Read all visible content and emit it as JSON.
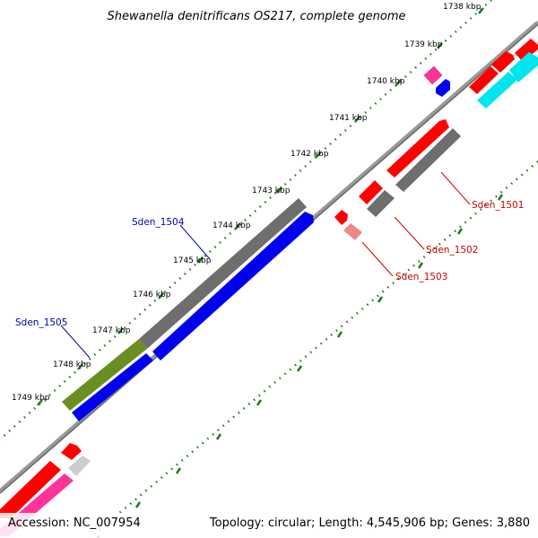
{
  "title": "Shewanella denitrificans OS217, complete genome",
  "footer": {
    "accession": "Accession: NC_007954",
    "summary": "Topology: circular; Length: 4,545,906 bp; Genes: 3,880"
  },
  "ruler_labels": [
    "1738 kbp",
    "1739 kbp",
    "1740 kbp",
    "1741 kbp",
    "1742 kbp",
    "1743 kbp",
    "1744 kbp",
    "1745 kbp",
    "1746 kbp",
    "1747 kbp",
    "1748 kbp",
    "1749 kbp"
  ],
  "gene_labels": {
    "sden_1501": "Sden_1501",
    "sden_1502": "Sden_1502",
    "sden_1503": "Sden_1503",
    "sden_1504": "Sden_1504",
    "sden_1505": "Sden_1505"
  },
  "colors": {
    "forward_cds": "#ff0000",
    "forward_light": "#ee8888",
    "reverse_cds": "#0000ee",
    "gray_feature": "#6e6e6e",
    "light_gray_feature": "#cccccc",
    "olive_feature": "#6b8e23",
    "pink_feature": "#ff3399",
    "cyan_feature": "#00e5ee",
    "backbone": "#888888",
    "ruler_ticks": "#1f7a1f",
    "label_forward": "#cc0000",
    "label_reverse": "#0000aa"
  }
}
